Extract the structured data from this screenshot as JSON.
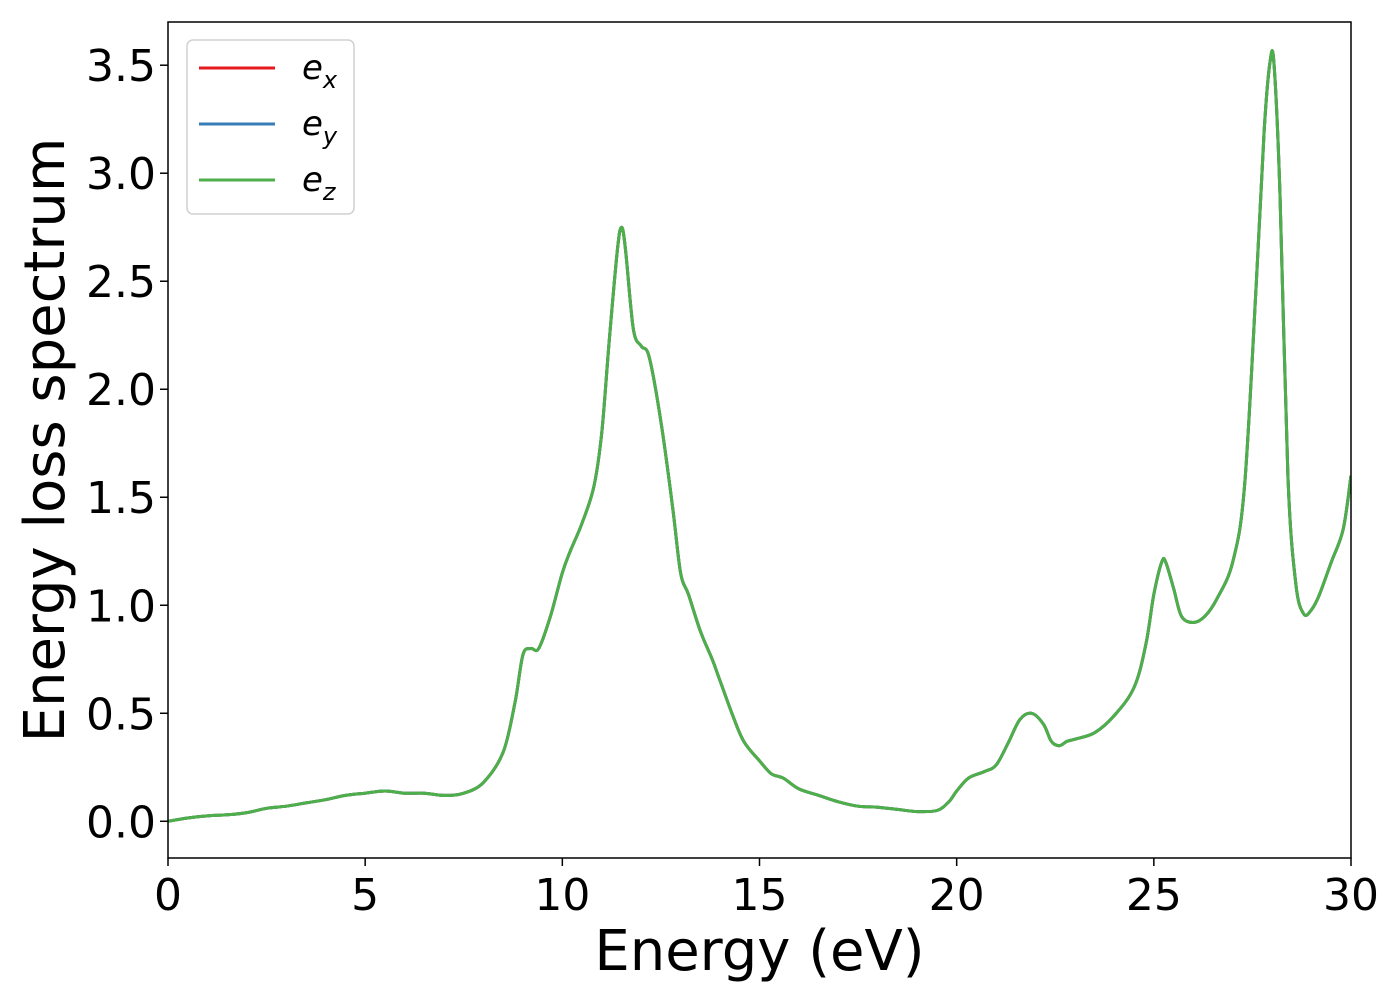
{
  "chart_data": {
    "type": "line",
    "xlabel": "Energy (eV)",
    "ylabel": "Energy loss spectrum",
    "xlim": [
      0,
      30
    ],
    "ylim": [
      -0.17,
      3.7
    ],
    "xticks": [
      0,
      5,
      10,
      15,
      20,
      25,
      30
    ],
    "xtick_labels": [
      "0",
      "5",
      "10",
      "15",
      "20",
      "25",
      "30"
    ],
    "yticks": [
      0.0,
      0.5,
      1.0,
      1.5,
      2.0,
      2.5,
      3.0,
      3.5
    ],
    "ytick_labels": [
      "0.0",
      "0.5",
      "1.0",
      "1.5",
      "2.0",
      "2.5",
      "3.0",
      "3.5"
    ],
    "grid": false,
    "legend_position": "top-left",
    "x": [
      0,
      0.5,
      1.0,
      1.5,
      2.0,
      2.5,
      3.0,
      3.5,
      4.0,
      4.5,
      5.0,
      5.5,
      6.0,
      6.5,
      7.0,
      7.5,
      8.0,
      8.5,
      8.8,
      9.0,
      9.2,
      9.4,
      9.7,
      10.0,
      10.2,
      10.5,
      10.8,
      11.0,
      11.2,
      11.4,
      11.5,
      11.6,
      11.8,
      12.0,
      12.2,
      12.5,
      12.8,
      13.0,
      13.2,
      13.5,
      13.8,
      14.0,
      14.3,
      14.6,
      15.0,
      15.3,
      15.6,
      16.0,
      16.5,
      17.0,
      17.5,
      18.0,
      18.5,
      19.0,
      19.5,
      19.8,
      20.0,
      20.3,
      20.7,
      21.0,
      21.3,
      21.6,
      21.9,
      22.2,
      22.4,
      22.6,
      22.8,
      23.0,
      23.5,
      24.0,
      24.5,
      24.8,
      25.0,
      25.2,
      25.3,
      25.5,
      25.7,
      26.0,
      26.3,
      26.6,
      27.0,
      27.3,
      27.6,
      27.8,
      27.95,
      28.05,
      28.2,
      28.4,
      28.6,
      28.8,
      29.0,
      29.2,
      29.5,
      29.8,
      30.0
    ],
    "series": [
      {
        "name": "e_x",
        "legend_main": "e",
        "legend_sub": "x",
        "color": "#e41a1c",
        "values": [
          0.0,
          0.015,
          0.025,
          0.03,
          0.04,
          0.06,
          0.07,
          0.085,
          0.1,
          0.12,
          0.13,
          0.14,
          0.13,
          0.13,
          0.12,
          0.13,
          0.18,
          0.32,
          0.55,
          0.77,
          0.8,
          0.8,
          0.95,
          1.15,
          1.25,
          1.38,
          1.55,
          1.8,
          2.25,
          2.65,
          2.75,
          2.65,
          2.28,
          2.2,
          2.15,
          1.85,
          1.45,
          1.15,
          1.05,
          0.88,
          0.75,
          0.65,
          0.5,
          0.37,
          0.28,
          0.22,
          0.2,
          0.15,
          0.12,
          0.09,
          0.07,
          0.065,
          0.055,
          0.045,
          0.05,
          0.09,
          0.14,
          0.2,
          0.23,
          0.26,
          0.36,
          0.47,
          0.5,
          0.45,
          0.37,
          0.35,
          0.37,
          0.38,
          0.41,
          0.49,
          0.62,
          0.82,
          1.05,
          1.2,
          1.2,
          1.08,
          0.95,
          0.92,
          0.95,
          1.03,
          1.2,
          1.55,
          2.5,
          3.2,
          3.52,
          3.5,
          2.9,
          1.6,
          1.1,
          0.96,
          0.98,
          1.05,
          1.2,
          1.35,
          1.6
        ]
      },
      {
        "name": "e_y",
        "legend_main": "e",
        "legend_sub": "y",
        "color": "#377eb8",
        "values": [
          0.0,
          0.015,
          0.025,
          0.03,
          0.04,
          0.06,
          0.07,
          0.085,
          0.1,
          0.12,
          0.13,
          0.14,
          0.13,
          0.13,
          0.12,
          0.13,
          0.18,
          0.32,
          0.55,
          0.77,
          0.8,
          0.8,
          0.95,
          1.15,
          1.25,
          1.38,
          1.55,
          1.8,
          2.25,
          2.65,
          2.75,
          2.65,
          2.28,
          2.2,
          2.15,
          1.85,
          1.45,
          1.15,
          1.05,
          0.88,
          0.75,
          0.65,
          0.5,
          0.37,
          0.28,
          0.22,
          0.2,
          0.15,
          0.12,
          0.09,
          0.07,
          0.065,
          0.055,
          0.045,
          0.05,
          0.09,
          0.14,
          0.2,
          0.23,
          0.26,
          0.36,
          0.47,
          0.5,
          0.45,
          0.37,
          0.35,
          0.37,
          0.38,
          0.41,
          0.49,
          0.62,
          0.82,
          1.05,
          1.2,
          1.2,
          1.08,
          0.95,
          0.92,
          0.95,
          1.03,
          1.2,
          1.55,
          2.5,
          3.2,
          3.52,
          3.5,
          2.9,
          1.6,
          1.1,
          0.96,
          0.98,
          1.05,
          1.2,
          1.35,
          1.6
        ]
      },
      {
        "name": "e_z",
        "legend_main": "e",
        "legend_sub": "z",
        "color": "#4daf4a",
        "values": [
          0.0,
          0.015,
          0.025,
          0.03,
          0.04,
          0.06,
          0.07,
          0.085,
          0.1,
          0.12,
          0.13,
          0.14,
          0.13,
          0.13,
          0.12,
          0.13,
          0.18,
          0.32,
          0.55,
          0.77,
          0.8,
          0.8,
          0.95,
          1.15,
          1.25,
          1.38,
          1.55,
          1.8,
          2.25,
          2.65,
          2.75,
          2.65,
          2.28,
          2.2,
          2.15,
          1.85,
          1.45,
          1.15,
          1.05,
          0.88,
          0.75,
          0.65,
          0.5,
          0.37,
          0.28,
          0.22,
          0.2,
          0.15,
          0.12,
          0.09,
          0.07,
          0.065,
          0.055,
          0.045,
          0.05,
          0.09,
          0.14,
          0.2,
          0.23,
          0.26,
          0.36,
          0.47,
          0.5,
          0.45,
          0.37,
          0.35,
          0.37,
          0.38,
          0.41,
          0.49,
          0.62,
          0.82,
          1.05,
          1.2,
          1.2,
          1.08,
          0.95,
          0.92,
          0.95,
          1.03,
          1.2,
          1.55,
          2.5,
          3.2,
          3.52,
          3.5,
          2.9,
          1.6,
          1.1,
          0.96,
          0.98,
          1.05,
          1.2,
          1.35,
          1.6
        ]
      }
    ]
  }
}
